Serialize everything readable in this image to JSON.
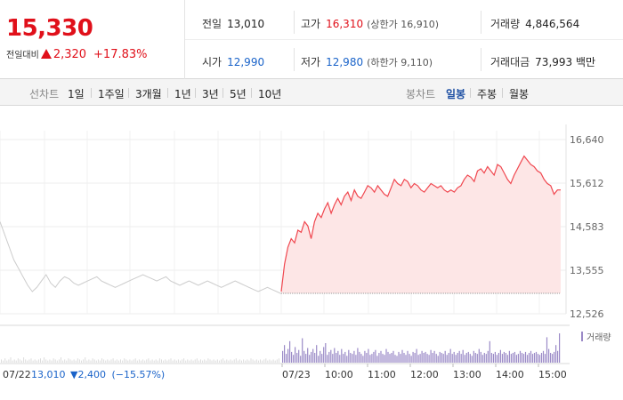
{
  "quote": {
    "price": "15,330",
    "change_label": "전일대비",
    "change_amount": "2,320",
    "change_pct": "+17.83%",
    "accent_up": "#e0101a",
    "accent_down": "#1a63c9"
  },
  "stats": {
    "prev_close": {
      "label": "전일",
      "value": "13,010"
    },
    "high": {
      "label": "고가",
      "value": "16,310",
      "limit_label": "상한가",
      "limit_value": "16,910"
    },
    "volume": {
      "label": "거래량",
      "value": "4,846,564"
    },
    "open": {
      "label": "시가",
      "value": "12,990"
    },
    "low": {
      "label": "저가",
      "value": "12,980",
      "limit_label": "하한가",
      "limit_value": "9,110"
    },
    "trade_value": {
      "label": "거래대금",
      "value": "73,993",
      "unit": "백만"
    }
  },
  "toolbar": {
    "line_chart_label": "선차트",
    "periods": [
      "1일",
      "1주일",
      "3개월",
      "1년",
      "3년",
      "5년",
      "10년"
    ],
    "candle_chart_label": "봉차트",
    "candle_periods": [
      "일봉",
      "주봉",
      "월봉"
    ],
    "active_candle_period": "일봉"
  },
  "chart_data": {
    "type": "line",
    "y_ticks": [
      "16,640",
      "15,612",
      "14,583",
      "13,555",
      "12,526"
    ],
    "y_tick_values": [
      16640,
      15612,
      14583,
      13555,
      12526
    ],
    "ylim": [
      12526,
      16640
    ],
    "baseline": 13010,
    "x_ticks": [
      "07/23",
      "10:00",
      "11:00",
      "12:00",
      "13:00",
      "14:00",
      "15:00"
    ],
    "prev_day_label": "07/22",
    "prev_day_summary": {
      "close": "13,010",
      "change": "2,400",
      "change_pct": "(−15.57%)"
    },
    "volume_legend": "거래량",
    "series": [
      {
        "session": "previous-day",
        "color": "#cccccc",
        "values": [
          14700,
          14400,
          14100,
          13800,
          13600,
          13400,
          13200,
          13050,
          13150,
          13300,
          13450,
          13250,
          13150,
          13300,
          13400,
          13350,
          13250,
          13200,
          13250,
          13300,
          13350,
          13400,
          13300,
          13250,
          13200,
          13150,
          13200,
          13250,
          13300,
          13350,
          13400,
          13450,
          13400,
          13350,
          13300,
          13350,
          13400,
          13300,
          13250,
          13200,
          13250,
          13300,
          13250,
          13200,
          13250,
          13300,
          13250,
          13200,
          13150,
          13200,
          13250,
          13300,
          13250,
          13200,
          13150,
          13100,
          13050,
          13100,
          13150,
          13100,
          13050,
          13000
        ]
      },
      {
        "session": "today",
        "color": "#f0474f",
        "fill": "#fde6e6",
        "values": [
          13050,
          13700,
          14100,
          14300,
          14200,
          14500,
          14450,
          14700,
          14600,
          14300,
          14700,
          14900,
          14800,
          15000,
          15150,
          14900,
          15100,
          15250,
          15100,
          15300,
          15400,
          15200,
          15450,
          15300,
          15250,
          15400,
          15550,
          15500,
          15400,
          15550,
          15450,
          15350,
          15300,
          15500,
          15700,
          15600,
          15550,
          15700,
          15650,
          15500,
          15600,
          15550,
          15450,
          15400,
          15500,
          15600,
          15550,
          15500,
          15550,
          15450,
          15400,
          15450,
          15400,
          15500,
          15550,
          15700,
          15800,
          15750,
          15650,
          15900,
          15950,
          15850,
          16000,
          15900,
          15800,
          16050,
          16000,
          15850,
          15700,
          15600,
          15800,
          15950,
          16100,
          16250,
          16150,
          16050,
          16000,
          15900,
          15850,
          15700,
          15600,
          15550,
          15350,
          15450,
          15450
        ]
      }
    ],
    "volume_prev": [
      3,
      2,
      4,
      2,
      3,
      5,
      2,
      3,
      2,
      4,
      3,
      2,
      5,
      3,
      2,
      3,
      4,
      2,
      3,
      2,
      3,
      4,
      2,
      5,
      3,
      2,
      3,
      2,
      4,
      3,
      2,
      3,
      5,
      2,
      3,
      2,
      4,
      3,
      2,
      3,
      2,
      4,
      3,
      2,
      3,
      5,
      2,
      3,
      2,
      4,
      3,
      2,
      3,
      2,
      4,
      3,
      2,
      3,
      2,
      3,
      4,
      2,
      3,
      2,
      3,
      2,
      4,
      3,
      2,
      3,
      2,
      3,
      4,
      2,
      3,
      2,
      3,
      2,
      3,
      4,
      2,
      3,
      2,
      3,
      2,
      4,
      3,
      2,
      3,
      2,
      3,
      4,
      2,
      3,
      2,
      3,
      2,
      3,
      4,
      2,
      3,
      2,
      3,
      2,
      3,
      4,
      2,
      3,
      2,
      3,
      2,
      4,
      3,
      2,
      3,
      2,
      3,
      2,
      3,
      4,
      2,
      3,
      2,
      3,
      2,
      3,
      4,
      2,
      3,
      2,
      3,
      2,
      3,
      2,
      4,
      3,
      2,
      3,
      2,
      3,
      2,
      3,
      4,
      2,
      3,
      2,
      3,
      2,
      3,
      4
    ],
    "volume_today": [
      12,
      18,
      9,
      14,
      22,
      11,
      8,
      16,
      10,
      13,
      7,
      25,
      12,
      9,
      15,
      8,
      11,
      14,
      10,
      18,
      7,
      12,
      9,
      16,
      20,
      8,
      11,
      13,
      9,
      15,
      10,
      12,
      8,
      14,
      9,
      11,
      7,
      13,
      10,
      9,
      12,
      8,
      15,
      11,
      9,
      7,
      12,
      10,
      14,
      8,
      9,
      11,
      13,
      7,
      10,
      12,
      9,
      8,
      14,
      11,
      9,
      10,
      12,
      8,
      7,
      11,
      9,
      13,
      10,
      8,
      12,
      9,
      7,
      11,
      10,
      14,
      8,
      9,
      12,
      10,
      11,
      9,
      8,
      13,
      10,
      12,
      9,
      7,
      11,
      10,
      9,
      12,
      8,
      10,
      14,
      9,
      11,
      8,
      10,
      12,
      9,
      13,
      8,
      10,
      11,
      9,
      7,
      12,
      10,
      9,
      14,
      11,
      8,
      10,
      9,
      12,
      22,
      10,
      9,
      11,
      8,
      10,
      13,
      9,
      11,
      10,
      8,
      12,
      9,
      10,
      11,
      8,
      9,
      12,
      10,
      9,
      11,
      8,
      10,
      12,
      9,
      10,
      11,
      9,
      8,
      10,
      12,
      9,
      26,
      14,
      10,
      9,
      11,
      18,
      12,
      30
    ]
  }
}
